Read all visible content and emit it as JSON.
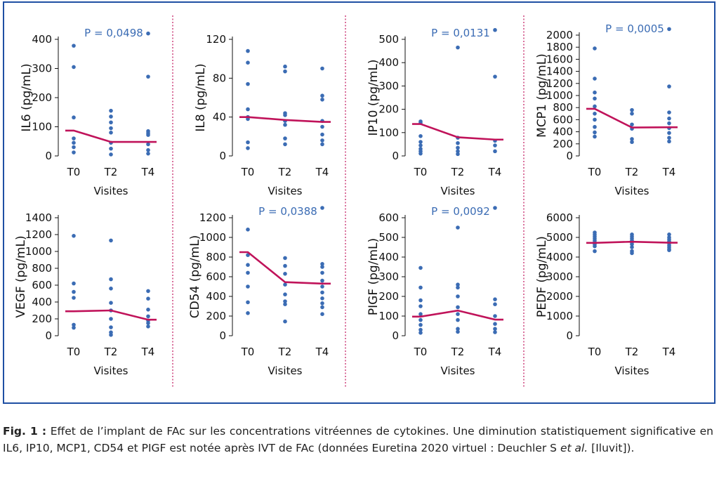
{
  "caption": {
    "label": "Fig. 1 :",
    "text": " Effet de l’implant de FAc sur les concentrations vitréennes de cytokines. Une diminution statistiquement significative en IL6, IP10, MCP1, CD54 et PIGF est notée après IVT de FAc (données Euretina 2020 virtuel : Deuchler S ",
    "etal": "et al.",
    "tail": " [Iluvit])."
  },
  "colors": {
    "points": "#3b6cb4",
    "line": "#c0135a",
    "pvalue": "#3b6cb4",
    "frame": "#1f4fa3",
    "divider": "#c0135a"
  },
  "chart_data": [
    {
      "type": "scatter",
      "ylabel": "IL6 (pg/mL)",
      "xlabel": "Visites",
      "categories": [
        "T0",
        "T2",
        "T4"
      ],
      "ylim": [
        0,
        420
      ],
      "yticks": [
        0,
        100,
        200,
        300,
        400
      ],
      "pvalue": "P = 0,0498",
      "points": [
        [
          0,
          378
        ],
        [
          0,
          305
        ],
        [
          0,
          132
        ],
        [
          0,
          60
        ],
        [
          0,
          45
        ],
        [
          0,
          30
        ],
        [
          0,
          12
        ],
        [
          1,
          155
        ],
        [
          1,
          135
        ],
        [
          1,
          115
        ],
        [
          1,
          95
        ],
        [
          1,
          80
        ],
        [
          1,
          45
        ],
        [
          1,
          25
        ],
        [
          1,
          5
        ],
        [
          2,
          420
        ],
        [
          2,
          272
        ],
        [
          2,
          85
        ],
        [
          2,
          78
        ],
        [
          2,
          72
        ],
        [
          2,
          40
        ],
        [
          2,
          20
        ],
        [
          2,
          8
        ]
      ],
      "means": [
        87,
        48,
        48
      ]
    },
    {
      "type": "scatter",
      "ylabel": "IL8 (pg/mL)",
      "xlabel": "Visites",
      "categories": [
        "T0",
        "T2",
        "T4"
      ],
      "ylim": [
        0,
        120
      ],
      "yticks": [
        0,
        40,
        80,
        120
      ],
      "pvalue": "",
      "points": [
        [
          0,
          108
        ],
        [
          0,
          96
        ],
        [
          0,
          74
        ],
        [
          0,
          48
        ],
        [
          0,
          40
        ],
        [
          0,
          38
        ],
        [
          0,
          14
        ],
        [
          0,
          8
        ],
        [
          1,
          92
        ],
        [
          1,
          87
        ],
        [
          1,
          44
        ],
        [
          1,
          42
        ],
        [
          1,
          36
        ],
        [
          1,
          32
        ],
        [
          1,
          18
        ],
        [
          1,
          12
        ],
        [
          2,
          90
        ],
        [
          2,
          62
        ],
        [
          2,
          58
        ],
        [
          2,
          36
        ],
        [
          2,
          30
        ],
        [
          2,
          22
        ],
        [
          2,
          16
        ],
        [
          2,
          12
        ]
      ],
      "means": [
        40,
        37,
        35
      ]
    },
    {
      "type": "scatter",
      "ylabel": "IP10 (pg/mL)",
      "xlabel": "Visites",
      "categories": [
        "T0",
        "T2",
        "T4"
      ],
      "ylim": [
        0,
        540
      ],
      "yticks": [
        0,
        100,
        200,
        300,
        400,
        500
      ],
      "pvalue": "P = 0,0131",
      "points": [
        [
          0,
          148
        ],
        [
          0,
          142
        ],
        [
          0,
          85
        ],
        [
          0,
          60
        ],
        [
          0,
          45
        ],
        [
          0,
          30
        ],
        [
          0,
          20
        ],
        [
          0,
          10
        ],
        [
          1,
          465
        ],
        [
          1,
          78
        ],
        [
          1,
          55
        ],
        [
          1,
          35
        ],
        [
          1,
          20
        ],
        [
          1,
          8
        ],
        [
          2,
          540
        ],
        [
          2,
          340
        ],
        [
          2,
          65
        ],
        [
          2,
          45
        ],
        [
          2,
          20
        ]
      ],
      "means": [
        137,
        80,
        70
      ]
    },
    {
      "type": "scatter",
      "ylabel": "MCP1 (pg/mL)",
      "xlabel": "Visites",
      "categories": [
        "T0",
        "T2",
        "T4"
      ],
      "ylim": [
        0,
        2100
      ],
      "yticks": [
        0,
        200,
        400,
        600,
        800,
        1000,
        1200,
        1400,
        1600,
        1800,
        2000
      ],
      "pvalue": "P = 0,0005",
      "points": [
        [
          0,
          1780
        ],
        [
          0,
          1280
        ],
        [
          0,
          1050
        ],
        [
          0,
          950
        ],
        [
          0,
          820
        ],
        [
          0,
          700
        ],
        [
          0,
          600
        ],
        [
          0,
          480
        ],
        [
          0,
          390
        ],
        [
          0,
          320
        ],
        [
          1,
          760
        ],
        [
          1,
          700
        ],
        [
          1,
          520
        ],
        [
          1,
          450
        ],
        [
          1,
          280
        ],
        [
          1,
          230
        ],
        [
          2,
          2100
        ],
        [
          2,
          1150
        ],
        [
          2,
          720
        ],
        [
          2,
          620
        ],
        [
          2,
          540
        ],
        [
          2,
          460
        ],
        [
          2,
          380
        ],
        [
          2,
          300
        ],
        [
          2,
          240
        ]
      ],
      "means": [
        780,
        470,
        475
      ]
    },
    {
      "type": "scatter",
      "ylabel": "VEGF (pg/mL)",
      "xlabel": "Visites",
      "categories": [
        "T0",
        "T2",
        "T4"
      ],
      "ylim": [
        0,
        1400
      ],
      "yticks": [
        0,
        200,
        400,
        600,
        800,
        1000,
        1200,
        1400
      ],
      "pvalue": "",
      "points": [
        [
          0,
          1185
        ],
        [
          0,
          620
        ],
        [
          0,
          520
        ],
        [
          0,
          450
        ],
        [
          0,
          130
        ],
        [
          0,
          95
        ],
        [
          1,
          1130
        ],
        [
          1,
          670
        ],
        [
          1,
          560
        ],
        [
          1,
          390
        ],
        [
          1,
          300
        ],
        [
          1,
          200
        ],
        [
          1,
          100
        ],
        [
          1,
          40
        ],
        [
          1,
          10
        ],
        [
          2,
          530
        ],
        [
          2,
          440
        ],
        [
          2,
          310
        ],
        [
          2,
          230
        ],
        [
          2,
          180
        ],
        [
          2,
          150
        ],
        [
          2,
          110
        ]
      ],
      "means": [
        290,
        300,
        190
      ]
    },
    {
      "type": "scatter",
      "ylabel": "CD54 (pg/mL)",
      "xlabel": "Visites",
      "categories": [
        "T0",
        "T2",
        "T4"
      ],
      "ylim": [
        0,
        1300
      ],
      "yticks": [
        0,
        200,
        400,
        600,
        800,
        1000,
        1200
      ],
      "pvalue": "P = 0,0388",
      "points": [
        [
          0,
          1080
        ],
        [
          0,
          820
        ],
        [
          0,
          720
        ],
        [
          0,
          640
        ],
        [
          0,
          500
        ],
        [
          0,
          340
        ],
        [
          0,
          230
        ],
        [
          1,
          790
        ],
        [
          1,
          710
        ],
        [
          1,
          630
        ],
        [
          1,
          520
        ],
        [
          1,
          420
        ],
        [
          1,
          350
        ],
        [
          1,
          320
        ],
        [
          1,
          145
        ],
        [
          2,
          1300
        ],
        [
          2,
          730
        ],
        [
          2,
          700
        ],
        [
          2,
          640
        ],
        [
          2,
          560
        ],
        [
          2,
          500
        ],
        [
          2,
          440
        ],
        [
          2,
          380
        ],
        [
          2,
          330
        ],
        [
          2,
          290
        ],
        [
          2,
          220
        ]
      ],
      "means": [
        850,
        545,
        530
      ]
    },
    {
      "type": "scatter",
      "ylabel": "PIGF (pg/mL)",
      "xlabel": "Visites",
      "categories": [
        "T0",
        "T2",
        "T4"
      ],
      "ylim": [
        0,
        650
      ],
      "yticks": [
        0,
        100,
        200,
        300,
        400,
        500,
        600
      ],
      "pvalue": "P = 0,0092",
      "points": [
        [
          0,
          345
        ],
        [
          0,
          245
        ],
        [
          0,
          180
        ],
        [
          0,
          150
        ],
        [
          0,
          110
        ],
        [
          0,
          80
        ],
        [
          0,
          55
        ],
        [
          0,
          30
        ],
        [
          0,
          15
        ],
        [
          1,
          550
        ],
        [
          1,
          260
        ],
        [
          1,
          245
        ],
        [
          1,
          200
        ],
        [
          1,
          145
        ],
        [
          1,
          110
        ],
        [
          1,
          80
        ],
        [
          1,
          35
        ],
        [
          1,
          20
        ],
        [
          2,
          650
        ],
        [
          2,
          185
        ],
        [
          2,
          160
        ],
        [
          2,
          100
        ],
        [
          2,
          60
        ],
        [
          2,
          35
        ],
        [
          2,
          18
        ]
      ],
      "means": [
        97,
        128,
        82
      ]
    },
    {
      "type": "scatter",
      "ylabel": "PEDF (pg/mL)",
      "xlabel": "Visites",
      "categories": [
        "T0",
        "T2",
        "T4"
      ],
      "ylim": [
        0,
        6000
      ],
      "yticks": [
        0,
        1000,
        2000,
        3000,
        4000,
        5000,
        6000
      ],
      "pvalue": "",
      "points": [
        [
          0,
          5250
        ],
        [
          0,
          5150
        ],
        [
          0,
          5050
        ],
        [
          0,
          4950
        ],
        [
          0,
          4850
        ],
        [
          0,
          4750
        ],
        [
          0,
          4650
        ],
        [
          0,
          4550
        ],
        [
          0,
          4300
        ],
        [
          1,
          5150
        ],
        [
          1,
          5050
        ],
        [
          1,
          4950
        ],
        [
          1,
          4850
        ],
        [
          1,
          4750
        ],
        [
          1,
          4650
        ],
        [
          1,
          4500
        ],
        [
          1,
          4300
        ],
        [
          1,
          4200
        ],
        [
          2,
          5150
        ],
        [
          2,
          5000
        ],
        [
          2,
          4900
        ],
        [
          2,
          4800
        ],
        [
          2,
          4700
        ],
        [
          2,
          4600
        ],
        [
          2,
          4500
        ],
        [
          2,
          4400
        ],
        [
          2,
          4350
        ]
      ],
      "means": [
        4720,
        4780,
        4730
      ]
    }
  ]
}
